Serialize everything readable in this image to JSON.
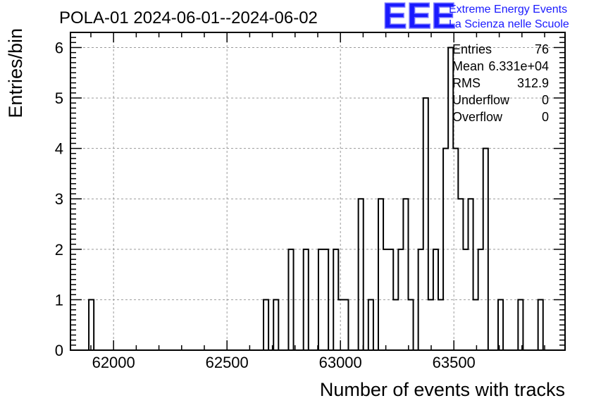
{
  "chart_data": {
    "type": "histogram",
    "title": "POLA-01 2024-06-01--2024-06-02",
    "xlabel": "Number of events with tracks",
    "ylabel": "Entries/bin",
    "xlim": [
      61810,
      63990
    ],
    "ylim": [
      0,
      6.3
    ],
    "grid": true,
    "x_tick_labels": [
      "62000",
      "62500",
      "63000",
      "63500"
    ],
    "x_ticks": [
      62000,
      62500,
      63000,
      63500
    ],
    "y_tick_labels": [
      "0",
      "1",
      "2",
      "3",
      "4",
      "5",
      "6"
    ],
    "y_ticks": [
      0,
      1,
      2,
      3,
      4,
      5,
      6
    ],
    "bin_width": 22,
    "bins": [
      {
        "x0": 61891,
        "count": 1
      },
      {
        "x0": 62661,
        "count": 1
      },
      {
        "x0": 62705,
        "count": 1
      },
      {
        "x0": 62771,
        "count": 2
      },
      {
        "x0": 62837,
        "count": 2
      },
      {
        "x0": 62903,
        "count": 2
      },
      {
        "x0": 62925,
        "count": 2
      },
      {
        "x0": 62969,
        "count": 2
      },
      {
        "x0": 62991,
        "count": 1
      },
      {
        "x0": 63013,
        "count": 1
      },
      {
        "x0": 63079,
        "count": 3
      },
      {
        "x0": 63123,
        "count": 1
      },
      {
        "x0": 63167,
        "count": 3
      },
      {
        "x0": 63189,
        "count": 2
      },
      {
        "x0": 63211,
        "count": 2
      },
      {
        "x0": 63233,
        "count": 1
      },
      {
        "x0": 63255,
        "count": 2
      },
      {
        "x0": 63277,
        "count": 3
      },
      {
        "x0": 63299,
        "count": 1
      },
      {
        "x0": 63343,
        "count": 2
      },
      {
        "x0": 63365,
        "count": 5
      },
      {
        "x0": 63387,
        "count": 1
      },
      {
        "x0": 63409,
        "count": 2
      },
      {
        "x0": 63431,
        "count": 1
      },
      {
        "x0": 63453,
        "count": 4
      },
      {
        "x0": 63475,
        "count": 6
      },
      {
        "x0": 63497,
        "count": 4
      },
      {
        "x0": 63519,
        "count": 3
      },
      {
        "x0": 63541,
        "count": 2
      },
      {
        "x0": 63563,
        "count": 3
      },
      {
        "x0": 63585,
        "count": 1
      },
      {
        "x0": 63607,
        "count": 2
      },
      {
        "x0": 63629,
        "count": 4
      },
      {
        "x0": 63695,
        "count": 1
      },
      {
        "x0": 63783,
        "count": 1
      },
      {
        "x0": 63871,
        "count": 1
      }
    ],
    "stats": [
      {
        "label": "Entries",
        "value": "76"
      },
      {
        "label": "Mean",
        "value": "6.331e+04"
      },
      {
        "label": "RMS",
        "value": "312.9"
      },
      {
        "label": "Underflow",
        "value": "0"
      },
      {
        "label": "Overflow",
        "value": "0"
      }
    ]
  },
  "logo": {
    "mark": "EEE",
    "line1": "Extreme Energy Events",
    "line2": "La Scienza nelle Scuole",
    "color": "#1a1aff"
  }
}
